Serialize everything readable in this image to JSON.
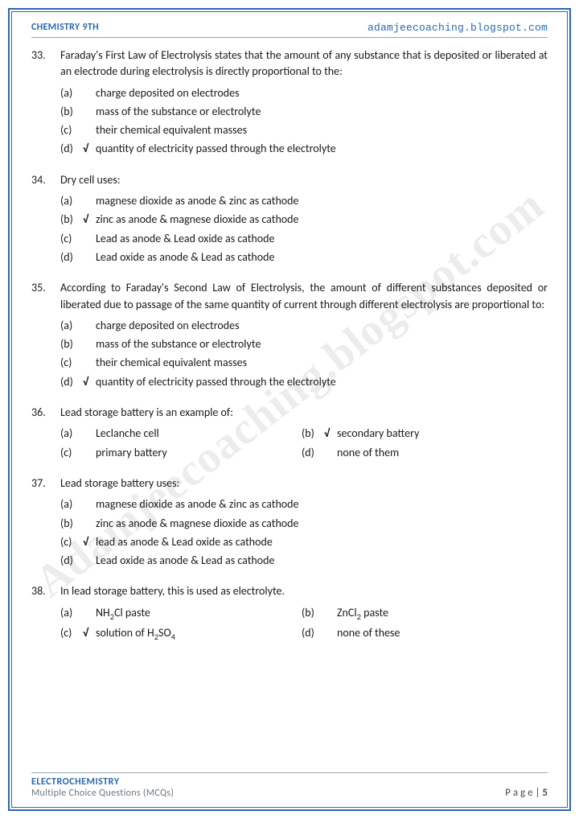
{
  "header": {
    "left": "CHEMISTRY 9TH",
    "right": "adamjeecoaching.blogspot.com"
  },
  "watermark": "Adamjeecoaching.blogspot.com",
  "footer": {
    "topic": "ELECTROCHEMISTRY",
    "subtitle": "Multiple Choice Questions (MCQs)",
    "page_prefix": "P a g e  | ",
    "page_num": "5"
  },
  "check": "√",
  "questions": [
    {
      "num": "33.",
      "text": "Faraday's First Law of Electrolysis states that the amount of any substance that is deposited or liberated at an electrode during electrolysis is directly proportional to the:",
      "layout": "single",
      "opts": [
        {
          "l": "(a)",
          "c": false,
          "t": "charge deposited on electrodes"
        },
        {
          "l": "(b)",
          "c": false,
          "t": "mass of the substance or electrolyte"
        },
        {
          "l": "(c)",
          "c": false,
          "t": "their chemical equivalent masses"
        },
        {
          "l": "(d)",
          "c": true,
          "t": "quantity of electricity passed through the electrolyte"
        }
      ]
    },
    {
      "num": "34.",
      "text": "Dry cell uses:",
      "layout": "single",
      "opts": [
        {
          "l": "(a)",
          "c": false,
          "t": "magnese dioxide as anode & zinc as cathode"
        },
        {
          "l": "(b)",
          "c": true,
          "t": "zinc as anode & magnese dioxide as cathode"
        },
        {
          "l": "(c)",
          "c": false,
          "t": "Lead as anode & Lead oxide as cathode"
        },
        {
          "l": "(d)",
          "c": false,
          "t": "Lead oxide as anode & Lead as cathode"
        }
      ]
    },
    {
      "num": "35.",
      "text": "According to Faraday's Second Law of Electrolysis, the amount of different substances deposited or liberated due to passage of the same quantity of current through different electrolysis are proportional to:",
      "layout": "single",
      "opts": [
        {
          "l": "(a)",
          "c": false,
          "t": "charge deposited on electrodes"
        },
        {
          "l": "(b)",
          "c": false,
          "t": "mass of the substance or electrolyte"
        },
        {
          "l": "(c)",
          "c": false,
          "t": "their chemical equivalent masses"
        },
        {
          "l": "(d)",
          "c": true,
          "t": "quantity of electricity passed through the electrolyte"
        }
      ]
    },
    {
      "num": "36.",
      "text": "Lead storage battery is an example of:",
      "layout": "two",
      "rows": [
        [
          {
            "l": "(a)",
            "c": false,
            "t": "Leclanche cell"
          },
          {
            "l": "(b)",
            "c": true,
            "t": "secondary battery"
          }
        ],
        [
          {
            "l": "(c)",
            "c": false,
            "t": "primary battery"
          },
          {
            "l": "(d)",
            "c": false,
            "t": "none of them"
          }
        ]
      ]
    },
    {
      "num": "37.",
      "text": "Lead storage battery uses:",
      "layout": "single",
      "opts": [
        {
          "l": "(a)",
          "c": false,
          "t": "magnese dioxide as anode & zinc as cathode"
        },
        {
          "l": "(b)",
          "c": false,
          "t": "zinc as anode & magnese dioxide as cathode"
        },
        {
          "l": "(c)",
          "c": true,
          "t": "lead as anode & Lead oxide as cathode"
        },
        {
          "l": "(d)",
          "c": false,
          "t": "Lead oxide as anode & Lead as cathode"
        }
      ]
    },
    {
      "num": "38.",
      "text": "In lead storage battery, this is used as electrolyte.",
      "layout": "two",
      "rows": [
        [
          {
            "l": "(a)",
            "c": false,
            "html": "NH<sub>2</sub>Cl paste"
          },
          {
            "l": "(b)",
            "c": false,
            "html": "ZnCl<sub>2</sub> paste"
          }
        ],
        [
          {
            "l": "(c)",
            "c": true,
            "html": "solution of H<sub>2</sub>SO<sub>4</sub>"
          },
          {
            "l": "(d)",
            "c": false,
            "t": "none of these"
          }
        ]
      ]
    }
  ]
}
